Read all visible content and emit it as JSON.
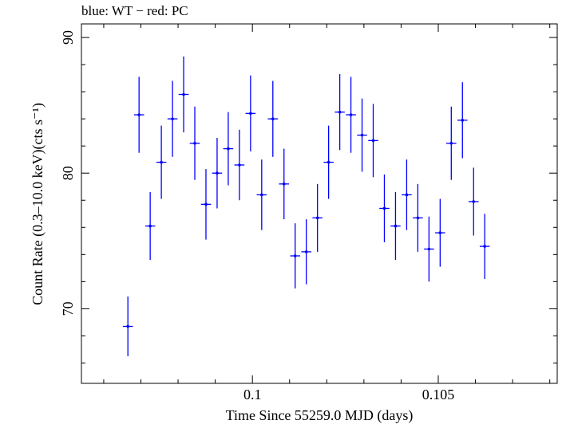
{
  "chart_data": {
    "type": "scatter",
    "title": "blue: WT − red: PC",
    "xlabel": "Time Since 55259.0 MJD (days)",
    "ylabel": "Count Rate (0.3–10.0 keV)(cts s⁻¹)",
    "xlim": [
      0.0954,
      0.1082
    ],
    "ylim": [
      64.5,
      91
    ],
    "x_ticks_labeled": [
      {
        "value": 0.1,
        "label": "0.1"
      },
      {
        "value": 0.105,
        "label": "0.105"
      }
    ],
    "y_ticks_labeled": [
      {
        "value": 70,
        "label": "70"
      },
      {
        "value": 80,
        "label": "80"
      },
      {
        "value": 90,
        "label": "90"
      }
    ],
    "x_minor_step": 0.001,
    "y_minor_step": 2,
    "grid": false,
    "legend": "none",
    "series": [
      {
        "color": "#0000ff",
        "x_halfwidth": 0.000135,
        "points": [
          {
            "x": 0.09665,
            "y": 68.7,
            "err": 2.2
          },
          {
            "x": 0.09695,
            "y": 84.3,
            "err": 2.8
          },
          {
            "x": 0.09725,
            "y": 76.1,
            "err": 2.5
          },
          {
            "x": 0.09755,
            "y": 80.8,
            "err": 2.7
          },
          {
            "x": 0.09785,
            "y": 84.0,
            "err": 2.8
          },
          {
            "x": 0.09815,
            "y": 85.8,
            "err": 2.8
          },
          {
            "x": 0.09845,
            "y": 82.2,
            "err": 2.7
          },
          {
            "x": 0.09875,
            "y": 77.7,
            "err": 2.6
          },
          {
            "x": 0.09905,
            "y": 80.0,
            "err": 2.6
          },
          {
            "x": 0.09935,
            "y": 81.8,
            "err": 2.7
          },
          {
            "x": 0.09965,
            "y": 80.6,
            "err": 2.6
          },
          {
            "x": 0.09995,
            "y": 84.4,
            "err": 2.8
          },
          {
            "x": 0.10025,
            "y": 78.4,
            "err": 2.6
          },
          {
            "x": 0.10055,
            "y": 84.0,
            "err": 2.8
          },
          {
            "x": 0.10085,
            "y": 79.2,
            "err": 2.6
          },
          {
            "x": 0.10115,
            "y": 73.9,
            "err": 2.4
          },
          {
            "x": 0.10145,
            "y": 74.2,
            "err": 2.4
          },
          {
            "x": 0.10175,
            "y": 76.7,
            "err": 2.5
          },
          {
            "x": 0.10205,
            "y": 80.8,
            "err": 2.7
          },
          {
            "x": 0.10235,
            "y": 84.5,
            "err": 2.8
          },
          {
            "x": 0.10265,
            "y": 84.3,
            "err": 2.8
          },
          {
            "x": 0.10295,
            "y": 82.8,
            "err": 2.7
          },
          {
            "x": 0.10325,
            "y": 82.4,
            "err": 2.7
          },
          {
            "x": 0.10355,
            "y": 77.4,
            "err": 2.5
          },
          {
            "x": 0.10385,
            "y": 76.1,
            "err": 2.5
          },
          {
            "x": 0.10415,
            "y": 78.4,
            "err": 2.6
          },
          {
            "x": 0.10445,
            "y": 76.7,
            "err": 2.5
          },
          {
            "x": 0.10475,
            "y": 74.4,
            "err": 2.4
          },
          {
            "x": 0.10505,
            "y": 75.6,
            "err": 2.5
          },
          {
            "x": 0.10535,
            "y": 82.2,
            "err": 2.7
          },
          {
            "x": 0.10565,
            "y": 83.9,
            "err": 2.8
          },
          {
            "x": 0.10595,
            "y": 77.9,
            "err": 2.5
          },
          {
            "x": 0.10625,
            "y": 74.6,
            "err": 2.4
          }
        ]
      }
    ]
  }
}
